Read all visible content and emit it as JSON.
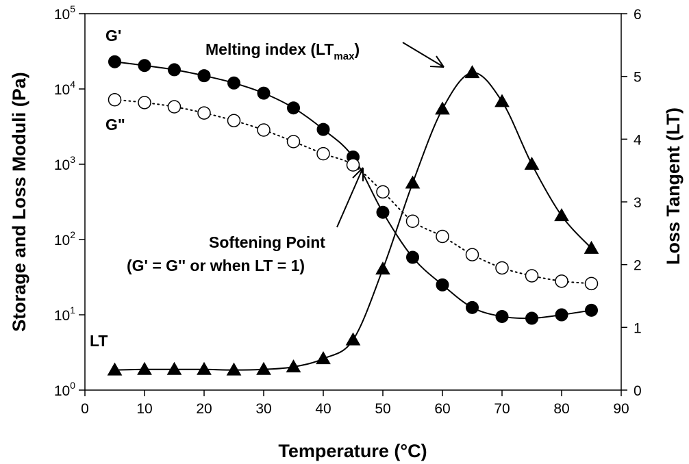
{
  "chart_data": {
    "type": "line",
    "x_axis": {
      "label": "Temperature (°C)",
      "range": [
        0,
        90
      ],
      "ticks": [
        0,
        10,
        20,
        30,
        40,
        50,
        60,
        70,
        80,
        90
      ]
    },
    "y_axis_left": {
      "label": "Storage and Loss Moduli (Pa)",
      "scale": "log",
      "range": [
        1,
        100000
      ],
      "ticks": [
        {
          "base": "10",
          "exp": "0",
          "value": 1
        },
        {
          "base": "10",
          "exp": "1",
          "value": 10
        },
        {
          "base": "10",
          "exp": "2",
          "value": 100
        },
        {
          "base": "10",
          "exp": "3",
          "value": 1000
        },
        {
          "base": "10",
          "exp": "4",
          "value": 10000
        },
        {
          "base": "10",
          "exp": "5",
          "value": 100000
        }
      ]
    },
    "y_axis_right": {
      "label": "Loss Tangent (LT)",
      "scale": "linear",
      "range": [
        0,
        6
      ],
      "ticks": [
        0,
        1,
        2,
        3,
        4,
        5,
        6
      ]
    },
    "x": [
      5,
      10,
      15,
      20,
      25,
      30,
      35,
      40,
      45,
      50,
      55,
      60,
      65,
      70,
      75,
      80,
      85
    ],
    "series": [
      {
        "name": "G'",
        "axis": "left",
        "marker": "filled-circle",
        "line": "solid",
        "values": [
          23000,
          20500,
          18000,
          15000,
          12000,
          8800,
          5600,
          2900,
          1250,
          230,
          58,
          25,
          12.5,
          9.5,
          9,
          10,
          11.5
        ]
      },
      {
        "name": "G\"",
        "axis": "left",
        "marker": "open-circle",
        "line": "dotted",
        "values": [
          7200,
          6600,
          5800,
          4800,
          3800,
          2850,
          2000,
          1380,
          980,
          430,
          175,
          110,
          63,
          42,
          33,
          28,
          26
        ]
      },
      {
        "name": "LT",
        "axis": "right",
        "marker": "filled-triangle",
        "line": "solid",
        "values": [
          0.32,
          0.33,
          0.33,
          0.33,
          0.32,
          0.33,
          0.37,
          0.5,
          0.8,
          1.93,
          3.3,
          4.48,
          5.06,
          4.6,
          3.6,
          2.78,
          2.26
        ]
      }
    ],
    "annotations": {
      "melting_index_main": "Melting index (LT",
      "melting_index_sub": "max",
      "melting_index_close": ")",
      "softening_line1": "Softening Point",
      "softening_line2": "(G' = G'' or when LT = 1)"
    },
    "grid": false,
    "legend": "inline labels"
  }
}
